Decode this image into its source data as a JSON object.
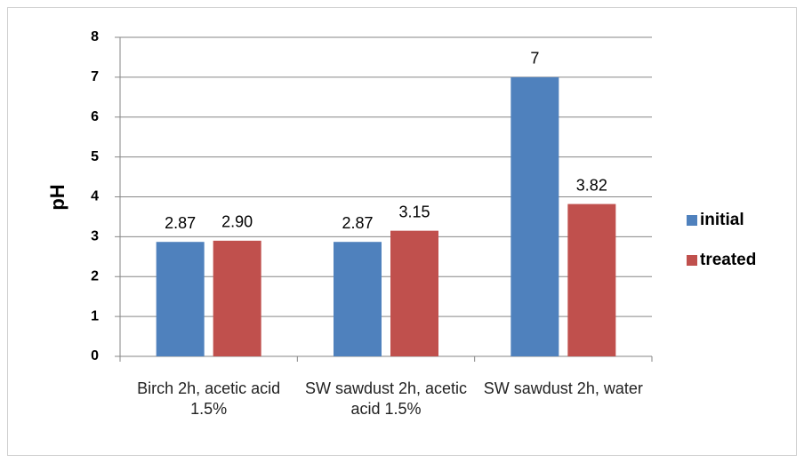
{
  "chart_data": {
    "type": "bar",
    "y_label": "pH",
    "categories": [
      "Birch 2h, acetic acid 1.5%",
      "SW sawdust 2h, acetic acid 1.5%",
      "SW sawdust 2h, water"
    ],
    "series": [
      {
        "name": "initial",
        "color": "#4f81bd",
        "values": [
          2.87,
          2.87,
          7
        ],
        "value_labels": [
          "2.87",
          "2.87",
          "7"
        ]
      },
      {
        "name": "treated",
        "color": "#c0504d",
        "values": [
          2.9,
          3.15,
          3.82
        ],
        "value_labels": [
          "2.90",
          "3.15",
          "3.82"
        ]
      }
    ],
    "ylim": [
      0,
      8
    ],
    "yticks": [
      0,
      1,
      2,
      3,
      4,
      5,
      6,
      7,
      8
    ],
    "grid": true,
    "legend": "right"
  }
}
